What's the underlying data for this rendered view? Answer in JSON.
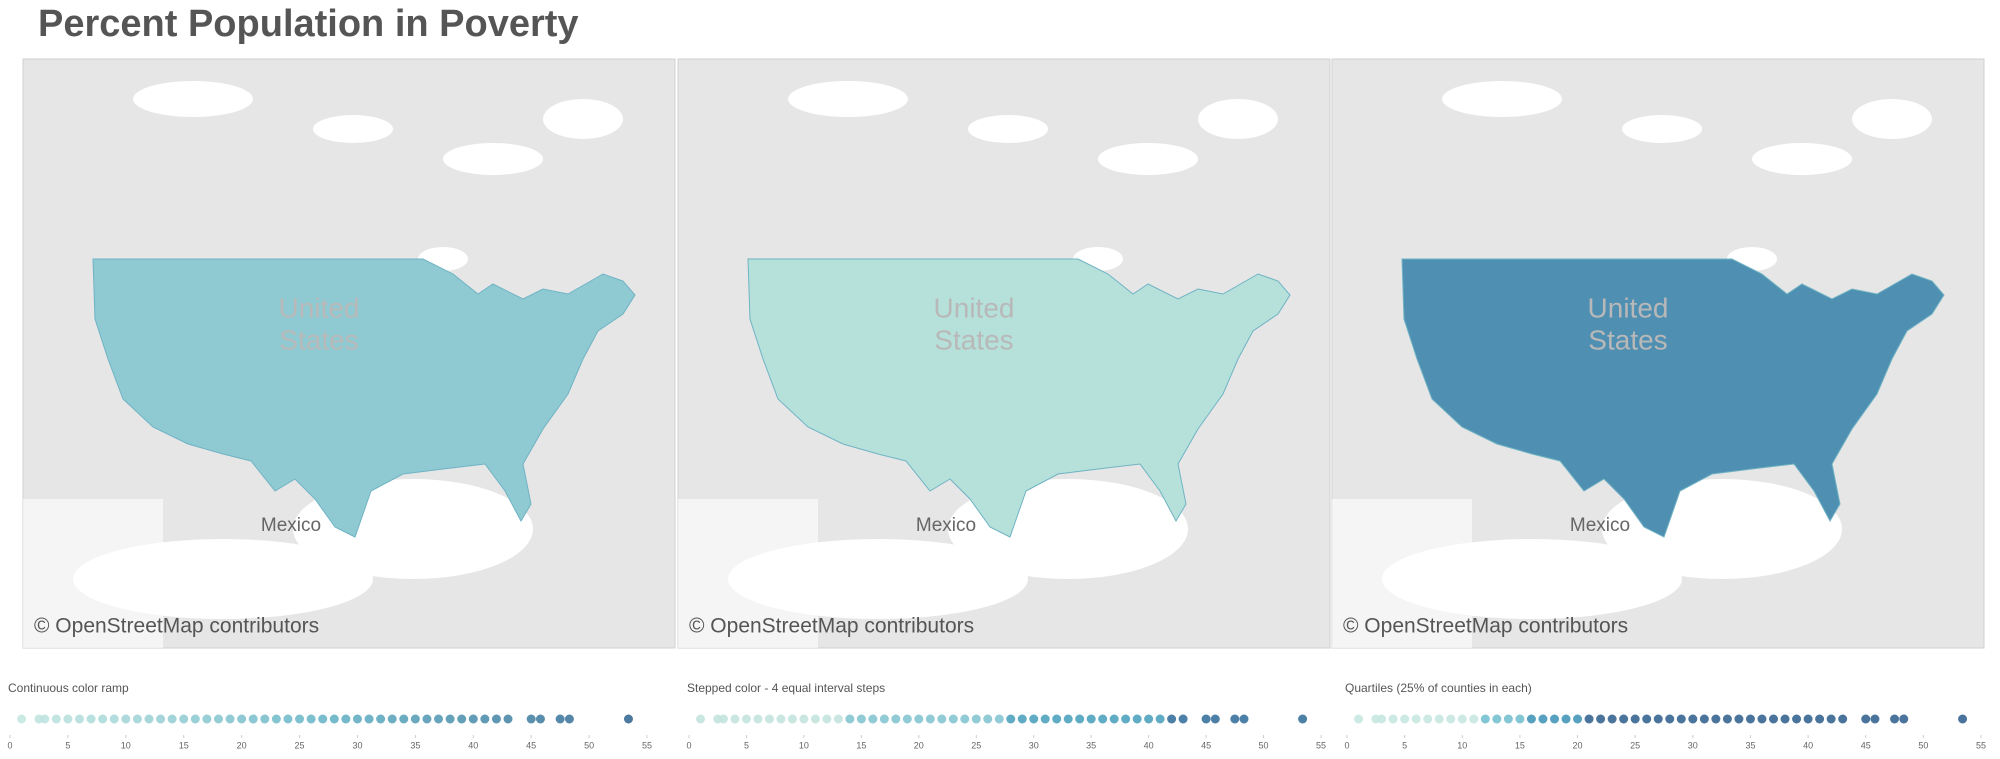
{
  "title": "Percent Population in Poverty",
  "maps": [
    {
      "country_label": [
        "United",
        "States"
      ],
      "place_label": "Mexico",
      "attribution": "© OpenStreetMap contributors"
    },
    {
      "country_label": [
        "United",
        "States"
      ],
      "place_label": "Mexico",
      "attribution": "© OpenStreetMap contributors"
    },
    {
      "country_label": [
        "United",
        "States"
      ],
      "place_label": "Mexico",
      "attribution": "© OpenStreetMap contributors"
    }
  ],
  "chart_data": [
    {
      "type": "strip",
      "title": "Continuous color ramp",
      "values": [
        1,
        2.5,
        3,
        4,
        5,
        6,
        7,
        8,
        9,
        10,
        11,
        12,
        13,
        14,
        15,
        16,
        17,
        18,
        19,
        20,
        21,
        22,
        23,
        24,
        25,
        26,
        27,
        28,
        29,
        30,
        31,
        32,
        33,
        34,
        35,
        36,
        37,
        38,
        39,
        40,
        41,
        42,
        43,
        45,
        45.8,
        47.5,
        48.3,
        53.4
      ],
      "xlim": [
        0,
        55
      ],
      "xticks": [
        0,
        5,
        10,
        15,
        20,
        25,
        30,
        35,
        40,
        45,
        50,
        55
      ],
      "color_scale": {
        "type": "continuous",
        "colors": [
          "#c6e8e0",
          "#5fb1c4",
          "#2a5d8a"
        ]
      }
    },
    {
      "type": "strip",
      "title": "Stepped color - 4 equal interval steps",
      "values": [
        1,
        2.5,
        3,
        4,
        5,
        6,
        7,
        8,
        9,
        10,
        11,
        12,
        13,
        14,
        15,
        16,
        17,
        18,
        19,
        20,
        21,
        22,
        23,
        24,
        25,
        26,
        27,
        28,
        29,
        30,
        31,
        32,
        33,
        34,
        35,
        36,
        37,
        38,
        39,
        40,
        41,
        42,
        43,
        45,
        45.8,
        47.5,
        48.3,
        53.4
      ],
      "xlim": [
        0,
        55
      ],
      "xticks": [
        0,
        5,
        10,
        15,
        20,
        25,
        30,
        35,
        40,
        45,
        50,
        55
      ],
      "color_scale": {
        "type": "stepped",
        "breaks": [
          13.75,
          27.5,
          41.25
        ],
        "colors": [
          "#bfe3db",
          "#7cc2cf",
          "#449ebb",
          "#2d6a96"
        ]
      }
    },
    {
      "type": "strip",
      "title": "Quartiles (25% of counties in each)",
      "values": [
        1,
        2.5,
        3,
        4,
        5,
        6,
        7,
        8,
        9,
        10,
        11,
        12,
        13,
        14,
        15,
        16,
        17,
        18,
        19,
        20,
        21,
        22,
        23,
        24,
        25,
        26,
        27,
        28,
        29,
        30,
        31,
        32,
        33,
        34,
        35,
        36,
        37,
        38,
        39,
        40,
        41,
        42,
        43,
        45,
        45.8,
        47.5,
        48.3,
        53.4
      ],
      "xlim": [
        0,
        55
      ],
      "xticks": [
        0,
        5,
        10,
        15,
        20,
        25,
        30,
        35,
        40,
        45,
        50,
        55
      ],
      "color_scale": {
        "type": "stepped",
        "breaks": [
          12,
          16,
          20.5
        ],
        "colors": [
          "#c3e6de",
          "#6cbdcb",
          "#3a8fb4",
          "#2a5c8a"
        ]
      }
    }
  ]
}
